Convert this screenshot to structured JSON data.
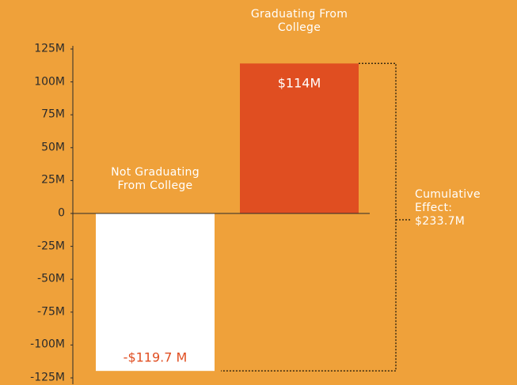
{
  "chart_data": {
    "type": "bar",
    "categories": [
      "Not Graduating From College",
      "Graduating From College"
    ],
    "values": [
      -119.7,
      114
    ],
    "value_labels": [
      "-$119.7 M",
      "$114M"
    ],
    "colors": [
      "#ffffff",
      "#e04e21"
    ],
    "value_label_colors": [
      "#e04e21",
      "#ffffff"
    ],
    "ylim": [
      -125,
      125
    ],
    "yticks": [
      {
        "value": 125,
        "label": "125M"
      },
      {
        "value": 100,
        "label": "100M"
      },
      {
        "value": 75,
        "label": "75M"
      },
      {
        "value": 50,
        "label": "50M"
      },
      {
        "value": 25,
        "label": "25M"
      },
      0,
      {
        "value": -25,
        "label": "-25M"
      },
      {
        "value": -50,
        "label": "-50M"
      },
      {
        "value": -75,
        "label": "-75M"
      },
      {
        "value": -100,
        "label": "-100M"
      },
      {
        "value": -125,
        "label": "-125M"
      }
    ],
    "annotation": "Cumulative Effect: $233.7M"
  }
}
